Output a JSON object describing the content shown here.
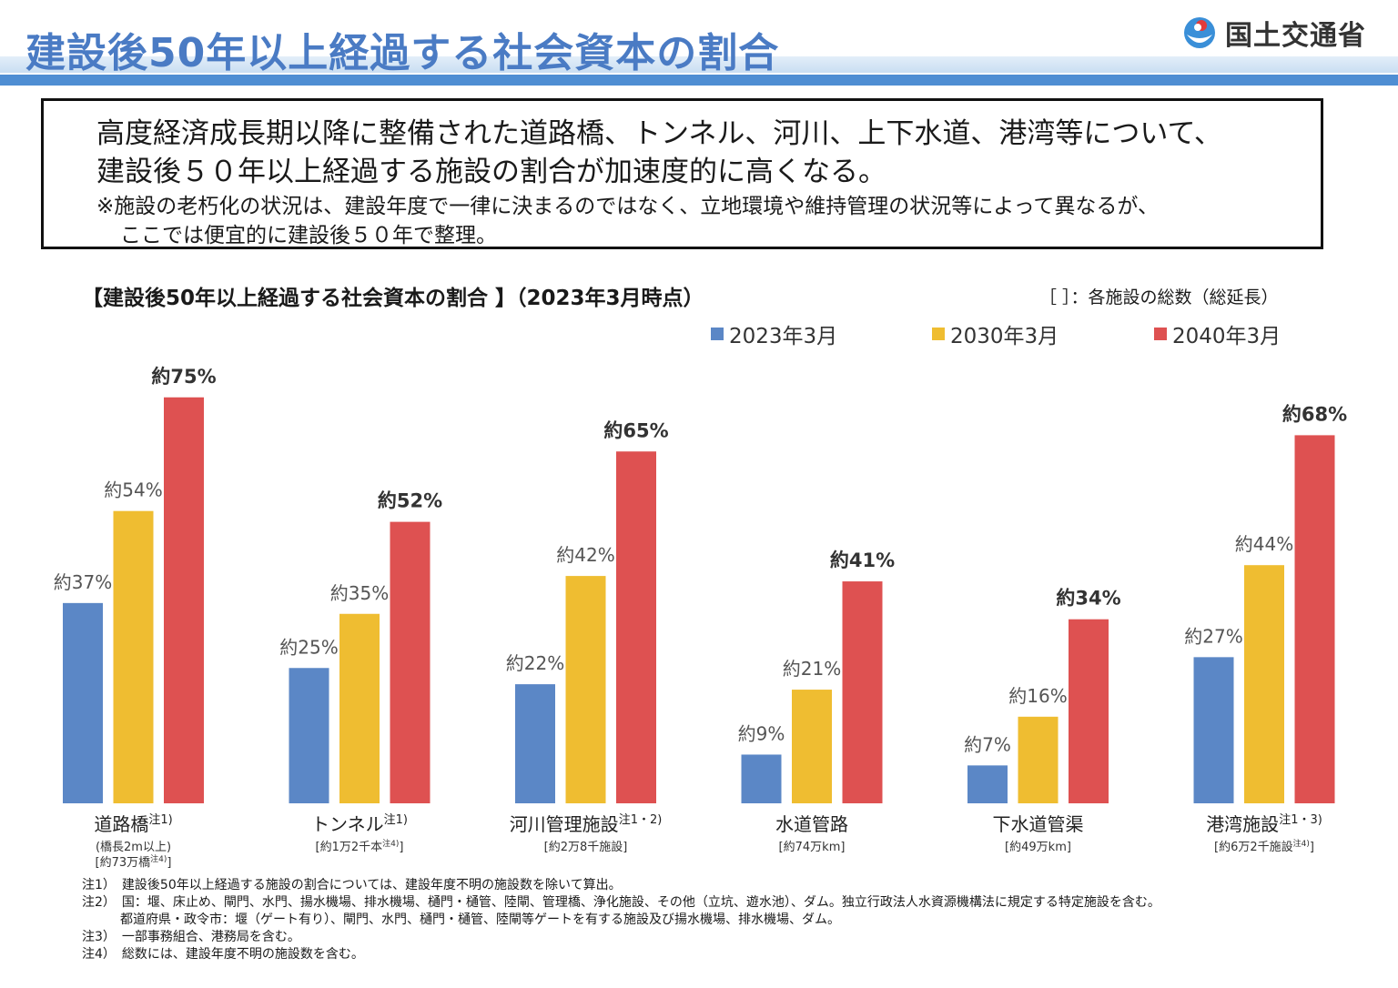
{
  "header": {
    "title": "建設後50年以上経過する社会資本の割合",
    "ministry": "国土交通省"
  },
  "summary": {
    "line1": "高度経済成長期以降に整備された道路橋、トンネル、河川、上下水道、港湾等について、",
    "line2": "建設後５０年以上経過する施設の割合が加速度的に高くなる。",
    "note1": "※施設の老朽化の状況は、建設年度で一律に決まるのではなく、立地環境や維持管理の状況等によって異なるが、",
    "note2": "ここでは便宜的に建設後５０年で整理。"
  },
  "chart_data": {
    "type": "bar",
    "title": "【建設後50年以上経過する社会資本の割合 】（2023年3月時点）",
    "note": "［ ］：各施設の総数（総延長）",
    "ylim": [
      0,
      100
    ],
    "categories": [
      {
        "name": "道路橋",
        "sup": "注1)",
        "sub": [
          "(橋長2m以上)",
          "[約73万橋",
          "注4)",
          "]"
        ]
      },
      {
        "name": "トンネル",
        "sup": "注1)",
        "sub": [
          "[約1万2千本",
          "注4)",
          "]"
        ]
      },
      {
        "name": "河川管理施設",
        "sup": "注1・2)",
        "sub": [
          "[約2万8千施設]"
        ]
      },
      {
        "name": "水道管路",
        "sup": "",
        "sub": [
          "[約74万km]"
        ]
      },
      {
        "name": "下水道管渠",
        "sup": "",
        "sub": [
          "[約49万km]"
        ]
      },
      {
        "name": "港湾施設",
        "sup": "注1・3)",
        "sub": [
          "[約6万2千施設",
          "注4)",
          "]"
        ]
      }
    ],
    "series": [
      {
        "name": "2023年3月",
        "color": "#5b87c6",
        "values": [
          37,
          25,
          22,
          9,
          7,
          27
        ],
        "labels": [
          "約37%",
          "約25%",
          "約22%",
          "約9%",
          "約7%",
          "約27%"
        ]
      },
      {
        "name": "2030年3月",
        "color": "#efbd31",
        "values": [
          54,
          35,
          42,
          21,
          16,
          44
        ],
        "labels": [
          "約54%",
          "約35%",
          "約42%",
          "約21%",
          "約16%",
          "約44%"
        ]
      },
      {
        "name": "2040年3月",
        "color": "#de5151",
        "values": [
          75,
          52,
          65,
          41,
          34,
          68
        ],
        "labels": [
          "約75%",
          "約52%",
          "約65%",
          "約41%",
          "約34%",
          "約68%"
        ]
      }
    ]
  },
  "footnotes": [
    "注1）　建設後50年以上経過する施設の割合については、建設年度不明の施設数を除いて算出。",
    "注2）　国：堰、床止め、閘門、水門、揚水機場、排水機場、樋門・樋管、陸閘、管理橋、浄化施設、その他（立坑、遊水池）、ダム。独立行政法人水資源機構法に規定する特定施設を含む。",
    "都道府県・政令市：堰（ゲート有り）、閘門、水門、樋門・樋管、陸閘等ゲートを有する施設及び揚水機場、排水機場、ダム。",
    "注3）　一部事務組合、港務局を含む。",
    "注4）　総数には、建設年度不明の施設数を含む。"
  ]
}
